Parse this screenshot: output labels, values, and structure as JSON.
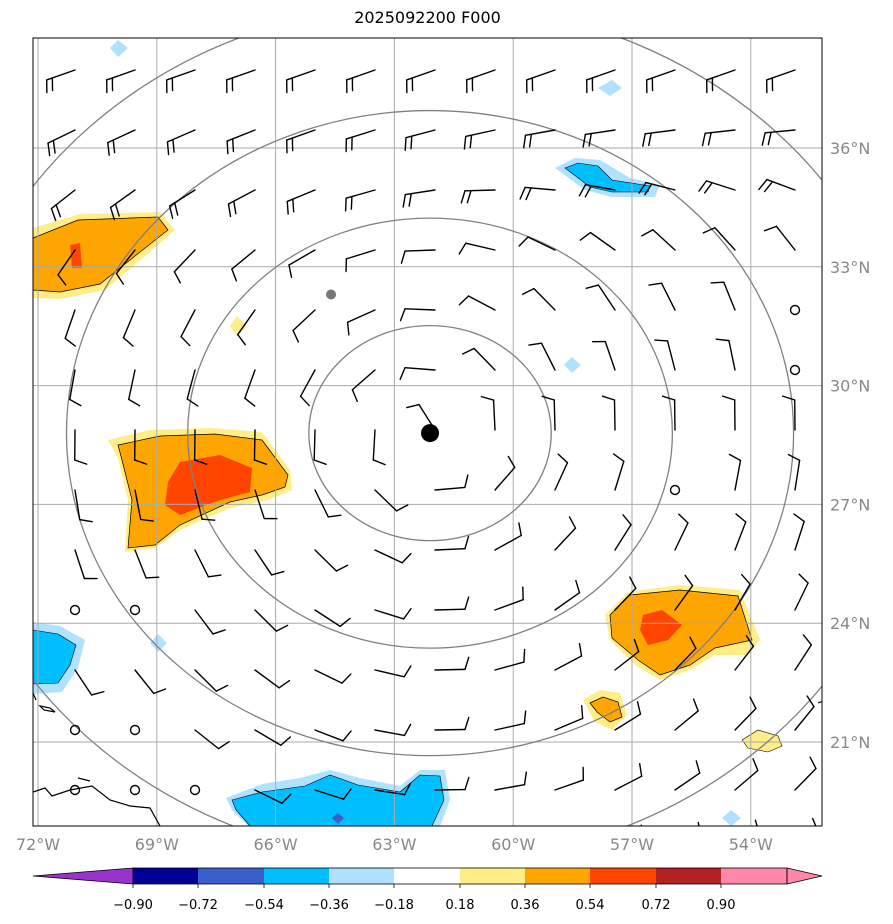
{
  "title": "2025092200 F000",
  "map": {
    "lon_range": [
      -72,
      -52.25
    ],
    "lat_range": [
      18.4,
      38.3
    ],
    "lon_ticks": [
      {
        "value": -72,
        "label": "72°W"
      },
      {
        "value": -69,
        "label": "69°W"
      },
      {
        "value": -66,
        "label": "66°W"
      },
      {
        "value": -63,
        "label": "63°W"
      },
      {
        "value": -60,
        "label": "60°W"
      },
      {
        "value": -57,
        "label": "57°W"
      },
      {
        "value": -54,
        "label": "54°W"
      }
    ],
    "lat_ticks": [
      {
        "value": 36,
        "label": "36°N"
      },
      {
        "value": 33,
        "label": "33°N"
      },
      {
        "value": 30,
        "label": "30°N"
      },
      {
        "value": 27,
        "label": "27°N"
      },
      {
        "value": 24,
        "label": "24°N"
      },
      {
        "value": 21,
        "label": "21°N"
      }
    ],
    "grid": true,
    "center": {
      "lon": -62.1,
      "lat": 28.8
    },
    "storm_marker_secondary": {
      "lon": -64.6,
      "lat": 32.3
    },
    "range_rings_deg": [
      3.0,
      6.0,
      9.0,
      12.0
    ],
    "ring_color": "#808080",
    "grid_color": "#aaaaaa"
  },
  "colorbar": {
    "tick_labels": [
      "−0.90",
      "−0.72",
      "−0.54",
      "−0.36",
      "−0.18",
      "0.18",
      "0.36",
      "0.54",
      "0.72",
      "0.90"
    ],
    "colors": [
      "#9933cc",
      "#000099",
      "#3a5fcd",
      "#00bfff",
      "#b0e2ff",
      "#ffffff",
      "#ffee88",
      "#ffa500",
      "#ff4500",
      "#b22222",
      "#ff88aa"
    ]
  },
  "fill_colors": {
    "pos1": "#ffee88",
    "pos2": "#ffa500",
    "pos3": "#ff4500",
    "neg1": "#b0e2ff",
    "neg2": "#00bfff",
    "neg3": "#3a5fcd"
  }
}
